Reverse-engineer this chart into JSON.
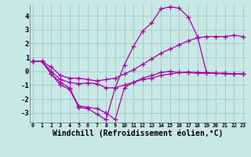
{
  "background_color": "#c8e8e4",
  "grid_color": "#a8cccc",
  "line_color": "#aa00aa",
  "marker": "+",
  "markersize": 4,
  "linewidth": 0.9,
  "xlabel": "Windchill (Refroidissement éolien,°C)",
  "xlabel_fontsize": 7,
  "xlim": [
    -0.3,
    23.3
  ],
  "ylim": [
    -3.7,
    4.8
  ],
  "yticks": [
    -3,
    -2,
    -1,
    0,
    1,
    2,
    3,
    4
  ],
  "xtick_labels": [
    "0",
    "1",
    "2",
    "3",
    "4",
    "5",
    "6",
    "7",
    "8",
    "9",
    "10",
    "11",
    "12",
    "13",
    "14",
    "15",
    "16",
    "17",
    "18",
    "19",
    "20",
    "21",
    "22",
    "23"
  ],
  "series": [
    [
      0.7,
      0.7,
      0.3,
      -0.3,
      -0.5,
      -0.5,
      -0.6,
      -0.7,
      -0.6,
      -0.5,
      -0.2,
      0.1,
      0.5,
      0.9,
      1.3,
      1.6,
      1.9,
      2.2,
      2.4,
      2.5,
      2.5,
      2.5,
      2.6,
      2.5
    ],
    [
      0.7,
      0.7,
      0.0,
      -0.6,
      -0.8,
      -0.9,
      -0.85,
      -0.9,
      -1.2,
      -1.2,
      -1.0,
      -0.8,
      -0.5,
      -0.3,
      -0.1,
      0.0,
      -0.1,
      -0.1,
      -0.15,
      -0.15,
      -0.15,
      -0.15,
      -0.2,
      -0.2
    ],
    [
      0.7,
      0.7,
      -0.2,
      -0.8,
      -1.2,
      -2.5,
      -2.6,
      -2.7,
      -3.0,
      -3.5,
      -1.2,
      -0.8,
      -0.6,
      -0.5,
      -0.3,
      -0.2,
      -0.1,
      -0.05,
      -0.1,
      -0.1,
      -0.15,
      -0.15,
      -0.2,
      -0.2
    ],
    [
      0.7,
      0.7,
      -0.2,
      -1.0,
      -1.3,
      -2.6,
      -2.7,
      -3.1,
      -3.5,
      -1.2,
      0.45,
      1.8,
      2.9,
      3.5,
      4.5,
      4.65,
      4.55,
      3.9,
      2.5,
      -0.15,
      -0.15,
      -0.2,
      -0.2,
      -0.2
    ]
  ]
}
